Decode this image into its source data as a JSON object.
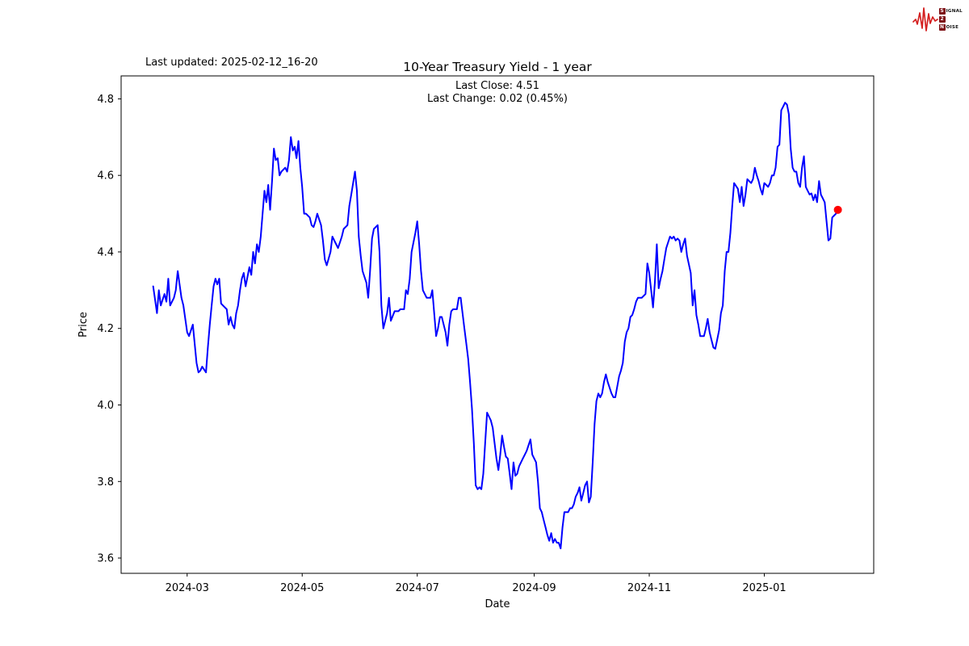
{
  "header": {
    "last_updated": "Last updated: 2025-02-12_16-20",
    "title": "10-Year Treasury Yield - 1 year",
    "subtitle_line1": "Last Close: 4.51",
    "subtitle_line2": "Last Change: 0.02 (0.45%)"
  },
  "logo": {
    "badge_s": "S",
    "word_ignal": "IGNAL",
    "badge_2": "2",
    "badge_n": "N",
    "word_oise": "OISE",
    "waveform_color": "#d42020"
  },
  "chart_data": {
    "type": "line",
    "title": "10-Year Treasury Yield - 1 year",
    "xlabel": "Date",
    "ylabel": "Price",
    "legend": "none",
    "grid": false,
    "line_color": "#0000ff",
    "last_point_color": "#ff0000",
    "last_close": 4.51,
    "last_change": "0.02 (0.45%)",
    "start_date": "2024-02-12",
    "x_unit": "days_since_2024-02-12",
    "xlim": [
      -17,
      382
    ],
    "ylim": [
      3.56,
      4.86
    ],
    "yticks": [
      3.6,
      3.8,
      4.0,
      4.2,
      4.4,
      4.6,
      4.8
    ],
    "xticks": [
      {
        "t": 18,
        "label": "2024-03"
      },
      {
        "t": 79,
        "label": "2024-05"
      },
      {
        "t": 140,
        "label": "2024-07"
      },
      {
        "t": 202,
        "label": "2024-09"
      },
      {
        "t": 263,
        "label": "2024-11"
      },
      {
        "t": 324,
        "label": "2025-01"
      }
    ],
    "points": [
      [
        0,
        4.31
      ],
      [
        2,
        4.24
      ],
      [
        3,
        4.3
      ],
      [
        4,
        4.26
      ],
      [
        6,
        4.29
      ],
      [
        7,
        4.27
      ],
      [
        8,
        4.33
      ],
      [
        9,
        4.26
      ],
      [
        11,
        4.28
      ],
      [
        12,
        4.3
      ],
      [
        13,
        4.35
      ],
      [
        15,
        4.28
      ],
      [
        16,
        4.26
      ],
      [
        18,
        4.19
      ],
      [
        19,
        4.18
      ],
      [
        21,
        4.21
      ],
      [
        23,
        4.11
      ],
      [
        24,
        4.085
      ],
      [
        25,
        4.09
      ],
      [
        26,
        4.1
      ],
      [
        28,
        4.085
      ],
      [
        29,
        4.15
      ],
      [
        30,
        4.21
      ],
      [
        31,
        4.26
      ],
      [
        32,
        4.31
      ],
      [
        33,
        4.33
      ],
      [
        34,
        4.315
      ],
      [
        35,
        4.33
      ],
      [
        36,
        4.265
      ],
      [
        37,
        4.26
      ],
      [
        39,
        4.25
      ],
      [
        40,
        4.21
      ],
      [
        41,
        4.23
      ],
      [
        42,
        4.21
      ],
      [
        43,
        4.2
      ],
      [
        44,
        4.24
      ],
      [
        45,
        4.26
      ],
      [
        46,
        4.3
      ],
      [
        47,
        4.33
      ],
      [
        48,
        4.345
      ],
      [
        49,
        4.31
      ],
      [
        51,
        4.36
      ],
      [
        52,
        4.34
      ],
      [
        53,
        4.4
      ],
      [
        54,
        4.37
      ],
      [
        55,
        4.42
      ],
      [
        56,
        4.4
      ],
      [
        57,
        4.44
      ],
      [
        58,
        4.5
      ],
      [
        59,
        4.56
      ],
      [
        60,
        4.53
      ],
      [
        61,
        4.575
      ],
      [
        62,
        4.51
      ],
      [
        63,
        4.585
      ],
      [
        64,
        4.67
      ],
      [
        65,
        4.64
      ],
      [
        66,
        4.645
      ],
      [
        67,
        4.6
      ],
      [
        68,
        4.61
      ],
      [
        69,
        4.615
      ],
      [
        70,
        4.62
      ],
      [
        71,
        4.61
      ],
      [
        72,
        4.64
      ],
      [
        73,
        4.7
      ],
      [
        74,
        4.665
      ],
      [
        75,
        4.675
      ],
      [
        76,
        4.645
      ],
      [
        77,
        4.69
      ],
      [
        78,
        4.62
      ],
      [
        79,
        4.57
      ],
      [
        80,
        4.5
      ],
      [
        81,
        4.5
      ],
      [
        83,
        4.49
      ],
      [
        84,
        4.47
      ],
      [
        85,
        4.465
      ],
      [
        86,
        4.48
      ],
      [
        87,
        4.5
      ],
      [
        89,
        4.47
      ],
      [
        90,
        4.43
      ],
      [
        91,
        4.38
      ],
      [
        92,
        4.365
      ],
      [
        94,
        4.4
      ],
      [
        95,
        4.44
      ],
      [
        97,
        4.42
      ],
      [
        98,
        4.41
      ],
      [
        99,
        4.425
      ],
      [
        100,
        4.44
      ],
      [
        101,
        4.46
      ],
      [
        103,
        4.47
      ],
      [
        104,
        4.52
      ],
      [
        105,
        4.55
      ],
      [
        107,
        4.61
      ],
      [
        108,
        4.56
      ],
      [
        109,
        4.44
      ],
      [
        110,
        4.39
      ],
      [
        111,
        4.35
      ],
      [
        113,
        4.32
      ],
      [
        114,
        4.28
      ],
      [
        115,
        4.35
      ],
      [
        116,
        4.435
      ],
      [
        117,
        4.46
      ],
      [
        119,
        4.47
      ],
      [
        120,
        4.4
      ],
      [
        121,
        4.26
      ],
      [
        122,
        4.2
      ],
      [
        124,
        4.24
      ],
      [
        125,
        4.28
      ],
      [
        126,
        4.22
      ],
      [
        128,
        4.245
      ],
      [
        130,
        4.245
      ],
      [
        131,
        4.25
      ],
      [
        133,
        4.25
      ],
      [
        134,
        4.3
      ],
      [
        135,
        4.29
      ],
      [
        136,
        4.33
      ],
      [
        137,
        4.4
      ],
      [
        139,
        4.45
      ],
      [
        140,
        4.48
      ],
      [
        141,
        4.42
      ],
      [
        142,
        4.35
      ],
      [
        143,
        4.3
      ],
      [
        145,
        4.28
      ],
      [
        147,
        4.28
      ],
      [
        148,
        4.3
      ],
      [
        149,
        4.24
      ],
      [
        150,
        4.18
      ],
      [
        151,
        4.2
      ],
      [
        152,
        4.23
      ],
      [
        153,
        4.23
      ],
      [
        155,
        4.19
      ],
      [
        156,
        4.155
      ],
      [
        157,
        4.21
      ],
      [
        158,
        4.245
      ],
      [
        159,
        4.25
      ],
      [
        161,
        4.25
      ],
      [
        162,
        4.28
      ],
      [
        163,
        4.28
      ],
      [
        164,
        4.24
      ],
      [
        165,
        4.2
      ],
      [
        166,
        4.16
      ],
      [
        167,
        4.12
      ],
      [
        168,
        4.06
      ],
      [
        169,
        3.99
      ],
      [
        170,
        3.9
      ],
      [
        171,
        3.79
      ],
      [
        172,
        3.78
      ],
      [
        173,
        3.785
      ],
      [
        174,
        3.78
      ],
      [
        175,
        3.82
      ],
      [
        176,
        3.9
      ],
      [
        177,
        3.98
      ],
      [
        179,
        3.96
      ],
      [
        180,
        3.94
      ],
      [
        181,
        3.9
      ],
      [
        182,
        3.86
      ],
      [
        183,
        3.83
      ],
      [
        184,
        3.87
      ],
      [
        185,
        3.92
      ],
      [
        186,
        3.89
      ],
      [
        187,
        3.865
      ],
      [
        188,
        3.86
      ],
      [
        189,
        3.82
      ],
      [
        190,
        3.78
      ],
      [
        191,
        3.85
      ],
      [
        192,
        3.815
      ],
      [
        193,
        3.82
      ],
      [
        194,
        3.84
      ],
      [
        195,
        3.85
      ],
      [
        196,
        3.86
      ],
      [
        197,
        3.87
      ],
      [
        198,
        3.88
      ],
      [
        200,
        3.91
      ],
      [
        201,
        3.87
      ],
      [
        203,
        3.85
      ],
      [
        204,
        3.8
      ],
      [
        205,
        3.73
      ],
      [
        206,
        3.72
      ],
      [
        207,
        3.7
      ],
      [
        208,
        3.68
      ],
      [
        209,
        3.66
      ],
      [
        210,
        3.645
      ],
      [
        211,
        3.665
      ],
      [
        212,
        3.64
      ],
      [
        213,
        3.65
      ],
      [
        214,
        3.64
      ],
      [
        215,
        3.64
      ],
      [
        216,
        3.625
      ],
      [
        217,
        3.68
      ],
      [
        218,
        3.72
      ],
      [
        220,
        3.72
      ],
      [
        221,
        3.73
      ],
      [
        222,
        3.73
      ],
      [
        223,
        3.74
      ],
      [
        224,
        3.76
      ],
      [
        225,
        3.77
      ],
      [
        226,
        3.785
      ],
      [
        227,
        3.75
      ],
      [
        228,
        3.77
      ],
      [
        229,
        3.79
      ],
      [
        230,
        3.8
      ],
      [
        231,
        3.745
      ],
      [
        232,
        3.76
      ],
      [
        233,
        3.85
      ],
      [
        234,
        3.95
      ],
      [
        235,
        4.01
      ],
      [
        236,
        4.03
      ],
      [
        237,
        4.02
      ],
      [
        238,
        4.03
      ],
      [
        239,
        4.06
      ],
      [
        240,
        4.08
      ],
      [
        241,
        4.06
      ],
      [
        243,
        4.03
      ],
      [
        244,
        4.02
      ],
      [
        245,
        4.02
      ],
      [
        247,
        4.075
      ],
      [
        248,
        4.09
      ],
      [
        249,
        4.11
      ],
      [
        250,
        4.165
      ],
      [
        251,
        4.19
      ],
      [
        252,
        4.2
      ],
      [
        253,
        4.23
      ],
      [
        254,
        4.235
      ],
      [
        255,
        4.25
      ],
      [
        256,
        4.27
      ],
      [
        257,
        4.28
      ],
      [
        259,
        4.28
      ],
      [
        260,
        4.285
      ],
      [
        261,
        4.29
      ],
      [
        262,
        4.37
      ],
      [
        263,
        4.345
      ],
      [
        264,
        4.3
      ],
      [
        265,
        4.255
      ],
      [
        266,
        4.32
      ],
      [
        267,
        4.42
      ],
      [
        268,
        4.305
      ],
      [
        269,
        4.33
      ],
      [
        270,
        4.35
      ],
      [
        271,
        4.38
      ],
      [
        272,
        4.41
      ],
      [
        274,
        4.44
      ],
      [
        275,
        4.435
      ],
      [
        276,
        4.44
      ],
      [
        277,
        4.43
      ],
      [
        278,
        4.435
      ],
      [
        279,
        4.43
      ],
      [
        280,
        4.4
      ],
      [
        281,
        4.42
      ],
      [
        282,
        4.435
      ],
      [
        283,
        4.39
      ],
      [
        285,
        4.345
      ],
      [
        286,
        4.26
      ],
      [
        287,
        4.3
      ],
      [
        288,
        4.235
      ],
      [
        289,
        4.21
      ],
      [
        290,
        4.18
      ],
      [
        291,
        4.18
      ],
      [
        292,
        4.18
      ],
      [
        293,
        4.2
      ],
      [
        294,
        4.225
      ],
      [
        295,
        4.19
      ],
      [
        296,
        4.17
      ],
      [
        297,
        4.15
      ],
      [
        298,
        4.147
      ],
      [
        299,
        4.17
      ],
      [
        300,
        4.195
      ],
      [
        301,
        4.24
      ],
      [
        302,
        4.26
      ],
      [
        303,
        4.35
      ],
      [
        304,
        4.4
      ],
      [
        305,
        4.4
      ],
      [
        306,
        4.45
      ],
      [
        307,
        4.52
      ],
      [
        308,
        4.58
      ],
      [
        310,
        4.565
      ],
      [
        311,
        4.53
      ],
      [
        312,
        4.57
      ],
      [
        313,
        4.52
      ],
      [
        314,
        4.55
      ],
      [
        315,
        4.59
      ],
      [
        316,
        4.585
      ],
      [
        317,
        4.58
      ],
      [
        318,
        4.59
      ],
      [
        319,
        4.62
      ],
      [
        320,
        4.6
      ],
      [
        321,
        4.585
      ],
      [
        322,
        4.565
      ],
      [
        323,
        4.55
      ],
      [
        324,
        4.58
      ],
      [
        325,
        4.575
      ],
      [
        326,
        4.57
      ],
      [
        327,
        4.58
      ],
      [
        328,
        4.6
      ],
      [
        329,
        4.6
      ],
      [
        330,
        4.62
      ],
      [
        331,
        4.675
      ],
      [
        332,
        4.68
      ],
      [
        333,
        4.77
      ],
      [
        334,
        4.78
      ],
      [
        335,
        4.79
      ],
      [
        336,
        4.785
      ],
      [
        337,
        4.76
      ],
      [
        338,
        4.67
      ],
      [
        339,
        4.62
      ],
      [
        340,
        4.61
      ],
      [
        341,
        4.61
      ],
      [
        342,
        4.58
      ],
      [
        343,
        4.57
      ],
      [
        344,
        4.62
      ],
      [
        345,
        4.65
      ],
      [
        346,
        4.57
      ],
      [
        347,
        4.56
      ],
      [
        348,
        4.55
      ],
      [
        349,
        4.553
      ],
      [
        350,
        4.535
      ],
      [
        351,
        4.55
      ],
      [
        352,
        4.53
      ],
      [
        353,
        4.585
      ],
      [
        354,
        4.55
      ],
      [
        355,
        4.54
      ],
      [
        356,
        4.53
      ],
      [
        357,
        4.48
      ],
      [
        358,
        4.43
      ],
      [
        359,
        4.435
      ],
      [
        360,
        4.49
      ],
      [
        361,
        4.495
      ],
      [
        362,
        4.5
      ],
      [
        363,
        4.51
      ]
    ]
  }
}
